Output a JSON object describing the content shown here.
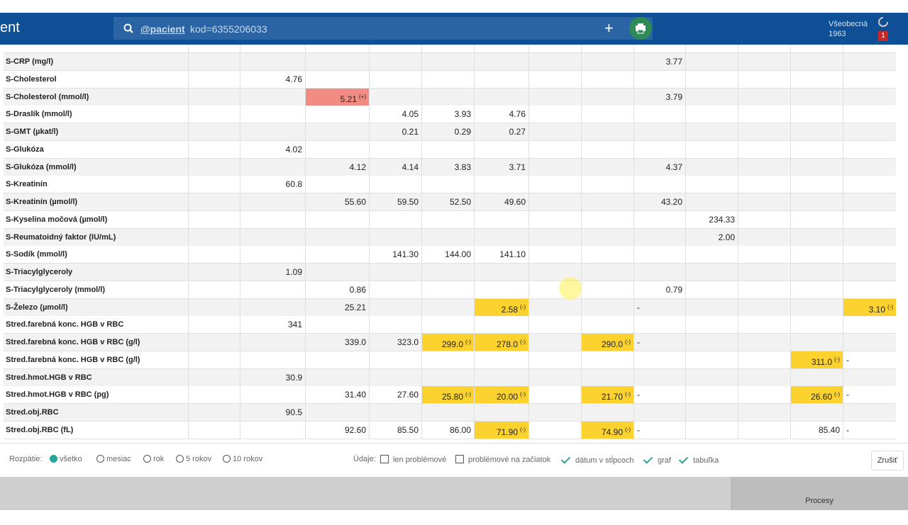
{
  "header": {
    "app_title": "ent",
    "search_tag": "@pacient",
    "search_text": "kod=6355206033",
    "user_name": "Všeobecná",
    "user_year": "1963",
    "badge": "1"
  },
  "table": {
    "rows": [
      {
        "name": "S-CRP (mg/l)",
        "cells": [
          null,
          null,
          null,
          null,
          null,
          null,
          null,
          null,
          "3.77",
          null,
          null,
          null,
          null
        ]
      },
      {
        "name": "S-Cholesterol",
        "cells": [
          null,
          "4.76",
          null,
          null,
          null,
          null,
          null,
          null,
          null,
          null,
          null,
          null,
          null
        ]
      },
      {
        "name": "S-Cholesterol (mmol/l)",
        "cells": [
          null,
          null,
          {
            "text": "5.21",
            "flag": "(+)",
            "status": "high"
          },
          null,
          null,
          null,
          null,
          null,
          "3.79",
          null,
          null,
          null,
          null
        ]
      },
      {
        "name": "S-Draslík (mmol/l)",
        "cells": [
          null,
          null,
          null,
          "4.05",
          "3.93",
          "4.76",
          null,
          null,
          null,
          null,
          null,
          null,
          null
        ]
      },
      {
        "name": "S-GMT (µkat/l)",
        "cells": [
          null,
          null,
          null,
          "0.21",
          "0.29",
          "0.27",
          null,
          null,
          null,
          null,
          null,
          null,
          null
        ]
      },
      {
        "name": "S-Glukóza",
        "cells": [
          null,
          "4.02",
          null,
          null,
          null,
          null,
          null,
          null,
          null,
          null,
          null,
          null,
          null
        ]
      },
      {
        "name": "S-Glukóza (mmol/l)",
        "cells": [
          null,
          null,
          "4.12",
          "4.14",
          "3.83",
          "3.71",
          null,
          null,
          "4.37",
          null,
          null,
          null,
          null
        ]
      },
      {
        "name": "S-Kreatinín",
        "cells": [
          null,
          "60.8",
          null,
          null,
          null,
          null,
          null,
          null,
          null,
          null,
          null,
          null,
          null
        ]
      },
      {
        "name": "S-Kreatinín (µmol/l)",
        "cells": [
          null,
          null,
          "55.60",
          "59.50",
          "52.50",
          "49.60",
          null,
          null,
          "43.20",
          null,
          null,
          null,
          null
        ]
      },
      {
        "name": "S-Kyselina močová (µmol/l)",
        "cells": [
          null,
          null,
          null,
          null,
          null,
          null,
          null,
          null,
          null,
          "234.33",
          null,
          null,
          null
        ]
      },
      {
        "name": "S-Reumatoidný faktor (IU/mL)",
        "cells": [
          null,
          null,
          null,
          null,
          null,
          null,
          null,
          null,
          null,
          "2.00",
          null,
          null,
          null
        ]
      },
      {
        "name": "S-Sodík (mmol/l)",
        "cells": [
          null,
          null,
          null,
          "141.30",
          "144.00",
          "141.10",
          null,
          null,
          null,
          null,
          null,
          null,
          null
        ]
      },
      {
        "name": "S-Triacylglyceroly",
        "cells": [
          null,
          "1.09",
          null,
          null,
          null,
          null,
          null,
          null,
          null,
          null,
          null,
          null,
          null
        ]
      },
      {
        "name": "S-Triacylglyceroly (mmol/l)",
        "cells": [
          null,
          null,
          "0.86",
          null,
          null,
          null,
          null,
          null,
          "0.79",
          null,
          null,
          null,
          null
        ]
      },
      {
        "name": "S-Železo (µmol/l)",
        "cells": [
          null,
          null,
          "25.21",
          null,
          null,
          {
            "text": "2.58",
            "flag": "(-)",
            "status": "low"
          },
          null,
          null,
          {
            "text": "-",
            "align": "left"
          },
          null,
          null,
          null,
          {
            "text": "3.10",
            "flag": "(-)",
            "status": "low"
          }
        ]
      },
      {
        "name": "Stred.farebná konc. HGB v RBC",
        "cells": [
          null,
          "341",
          null,
          null,
          null,
          null,
          null,
          null,
          null,
          null,
          null,
          null,
          null
        ]
      },
      {
        "name": "Stred.farebná konc. HGB v RBC (g/l)",
        "cells": [
          null,
          null,
          "339.0",
          "323.0",
          {
            "text": "299.0",
            "flag": "(-)",
            "status": "low"
          },
          {
            "text": "278.0",
            "flag": "(-)",
            "status": "low"
          },
          null,
          {
            "text": "290.0",
            "flag": "(-)",
            "status": "low"
          },
          {
            "text": "-",
            "align": "left"
          },
          null,
          null,
          null,
          null
        ]
      },
      {
        "name": "Stred.farebná konc. HGB v RBC (g/l)",
        "cells": [
          null,
          null,
          null,
          null,
          null,
          null,
          null,
          null,
          null,
          null,
          null,
          {
            "text": "311.0",
            "flag": "(-)",
            "status": "low"
          },
          {
            "text": "-",
            "align": "left"
          }
        ]
      },
      {
        "name": "Stred.hmot.HGB v RBC",
        "cells": [
          null,
          "30.9",
          null,
          null,
          null,
          null,
          null,
          null,
          null,
          null,
          null,
          null,
          null
        ]
      },
      {
        "name": "Stred.hmot.HGB v RBC (pg)",
        "cells": [
          null,
          null,
          "31.40",
          "27.60",
          {
            "text": "25.80",
            "flag": "(-)",
            "status": "low"
          },
          {
            "text": "20.00",
            "flag": "(-)",
            "status": "low"
          },
          null,
          {
            "text": "21.70",
            "flag": "(-)",
            "status": "low"
          },
          {
            "text": "-",
            "align": "left"
          },
          null,
          null,
          {
            "text": "26.60",
            "flag": "(-)",
            "status": "low"
          },
          {
            "text": "-",
            "align": "left"
          }
        ]
      },
      {
        "name": "Stred.obj.RBC",
        "cells": [
          null,
          "90.5",
          null,
          null,
          null,
          null,
          null,
          null,
          null,
          null,
          null,
          null,
          null
        ]
      },
      {
        "name": "Stred.obj.RBC (fL)",
        "cells": [
          null,
          null,
          "92.60",
          "85.50",
          "86.00",
          {
            "text": "71.90",
            "flag": "(-)",
            "status": "low"
          },
          null,
          {
            "text": "74.90",
            "flag": "(-)",
            "status": "low"
          },
          {
            "text": "-",
            "align": "left"
          },
          null,
          null,
          "85.40",
          {
            "text": "-",
            "align": "left"
          }
        ]
      }
    ]
  },
  "footer": {
    "range_label": "Rozpätie:",
    "range_options": [
      {
        "label": "všetko",
        "checked": true
      },
      {
        "label": "mesiac",
        "checked": false
      },
      {
        "label": "rok",
        "checked": false
      },
      {
        "label": "5 rokov",
        "checked": false
      },
      {
        "label": "10 rokov",
        "checked": false
      }
    ],
    "data_label": "Údaje:",
    "data_options": [
      {
        "label": "len problémové",
        "checked": false
      },
      {
        "label": "problémové na začiatok",
        "checked": false
      },
      {
        "label": "dátum v stĺpcoch",
        "checked": true
      },
      {
        "label": "graf",
        "checked": true
      },
      {
        "label": "tabuľka",
        "checked": true
      }
    ],
    "cancel": "Zrušiť",
    "taskbar": "Procesy"
  }
}
